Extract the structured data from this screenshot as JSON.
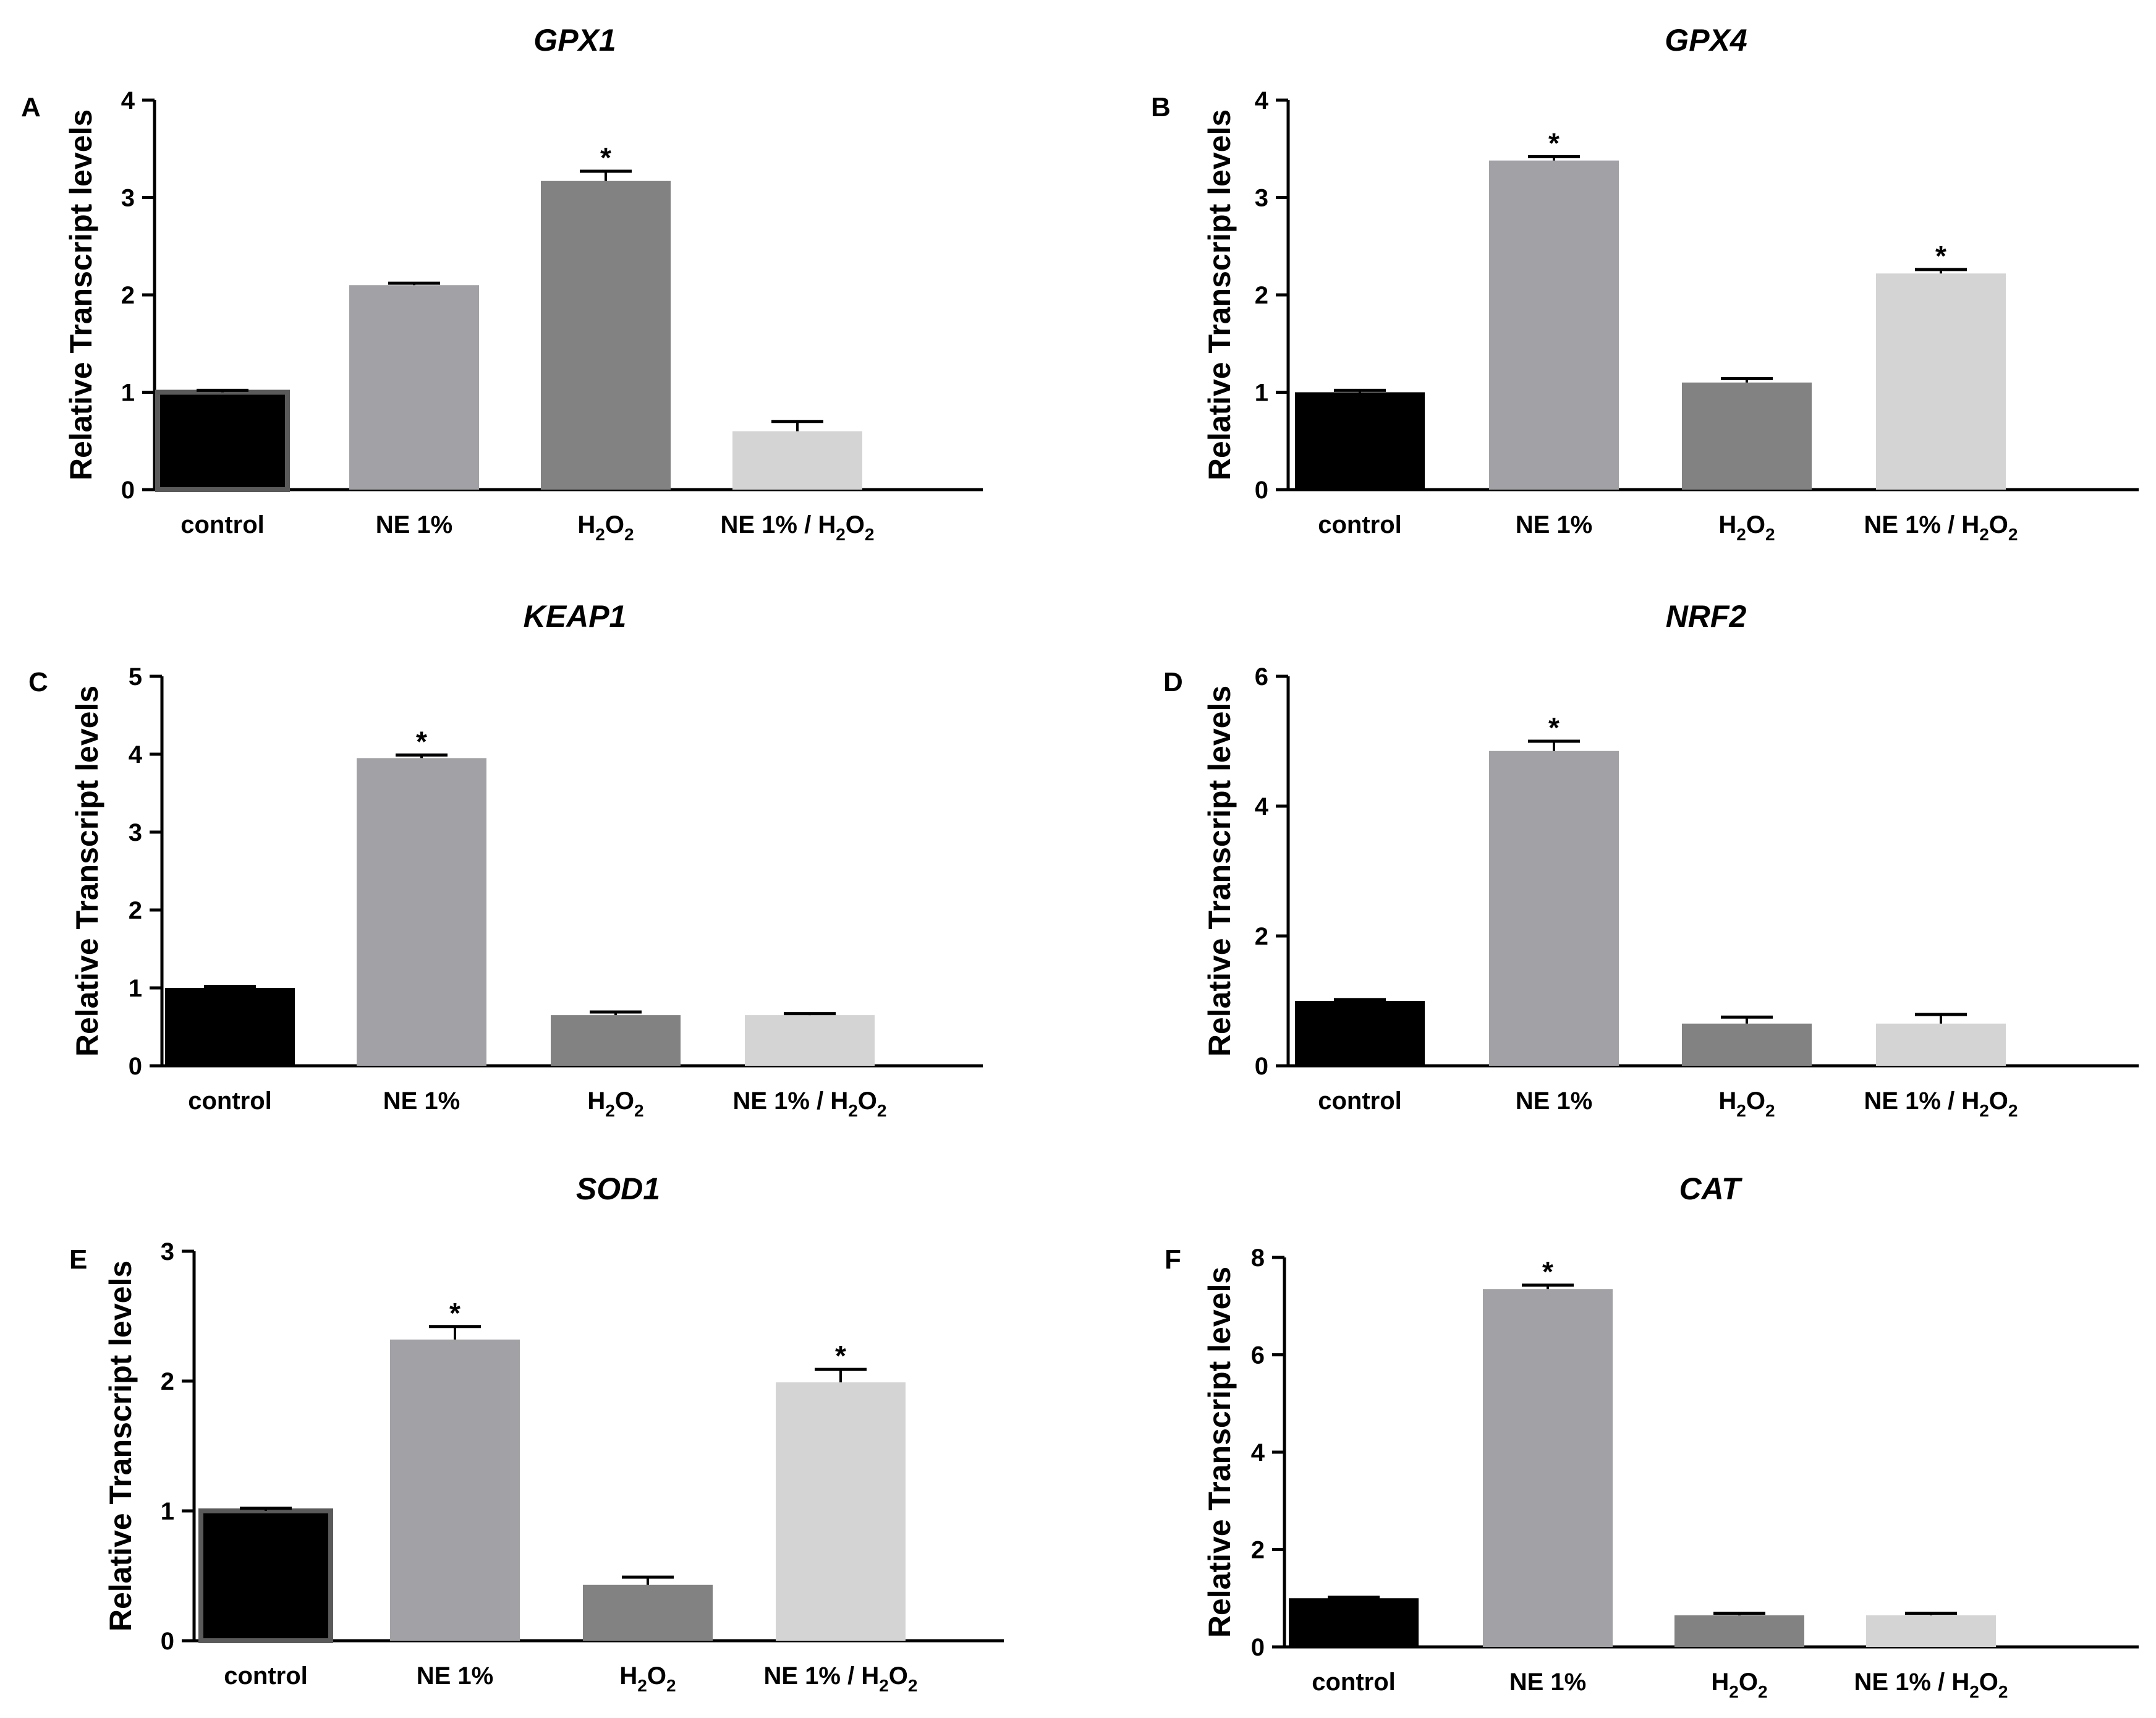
{
  "figure": {
    "ylabel": "Relative Transcript levels",
    "categories": [
      "control",
      "NE 1%",
      "H2O2",
      "NE 1%  / H2O2"
    ],
    "colors": [
      "#000000",
      "#a2a2a6",
      "#828282",
      "#d4d4d4"
    ],
    "outline_color": "#5a5a5a"
  },
  "chart_data": [
    {
      "type": "bar",
      "letter": "A",
      "title": "GPX1",
      "ylabel": "Relative Transcript levels",
      "categories": [
        "control",
        "NE 1%",
        "H2O2",
        "NE 1%  / H2O2"
      ],
      "values": [
        1.0,
        2.1,
        3.17,
        0.6
      ],
      "errors": [
        0.02,
        0.02,
        0.1,
        0.1
      ],
      "significant": [
        false,
        false,
        true,
        false
      ],
      "outlined": [
        true,
        false,
        false,
        false
      ],
      "ylim": [
        0,
        4
      ],
      "yticks": [
        0,
        1,
        2,
        3,
        4
      ]
    },
    {
      "type": "bar",
      "letter": "B",
      "title": "GPX4",
      "ylabel": "Relative Transcript levels",
      "categories": [
        "control",
        "NE 1%",
        "H2O2",
        "NE 1%  / H2O2"
      ],
      "values": [
        1.0,
        3.38,
        1.1,
        2.22
      ],
      "errors": [
        0.02,
        0.04,
        0.04,
        0.04
      ],
      "significant": [
        false,
        true,
        false,
        true
      ],
      "outlined": [
        false,
        false,
        false,
        false
      ],
      "ylim": [
        0,
        4
      ],
      "yticks": [
        0,
        1,
        2,
        3,
        4
      ]
    },
    {
      "type": "bar",
      "letter": "C",
      "title": "KEAP1",
      "ylabel": "Relative Transcript levels",
      "categories": [
        "control",
        "NE 1%",
        "H2O2",
        "NE 1%  / H2O2"
      ],
      "values": [
        1.0,
        3.95,
        0.65,
        0.65
      ],
      "errors": [
        0.02,
        0.04,
        0.04,
        0.02
      ],
      "significant": [
        false,
        true,
        false,
        false
      ],
      "outlined": [
        false,
        false,
        false,
        false
      ],
      "ylim": [
        0,
        5
      ],
      "yticks": [
        0,
        1,
        2,
        3,
        4,
        5
      ]
    },
    {
      "type": "bar",
      "letter": "D",
      "title": "NRF2",
      "ylabel": "Relative Transcript levels",
      "categories": [
        "control",
        "NE 1%",
        "H2O2",
        "NE 1%  / H2O2"
      ],
      "values": [
        1.0,
        4.85,
        0.65,
        0.65
      ],
      "errors": [
        0.02,
        0.15,
        0.1,
        0.14
      ],
      "significant": [
        false,
        true,
        false,
        false
      ],
      "outlined": [
        false,
        false,
        false,
        false
      ],
      "ylim": [
        0,
        6
      ],
      "yticks": [
        0,
        2,
        4,
        6
      ]
    },
    {
      "type": "bar",
      "letter": "E",
      "title": "SOD1",
      "ylabel": "Relative Transcript levels",
      "categories": [
        "control",
        "NE 1%",
        "H2O2",
        "NE 1%  / H2O2"
      ],
      "values": [
        1.0,
        2.32,
        0.43,
        1.99
      ],
      "errors": [
        0.02,
        0.1,
        0.06,
        0.1
      ],
      "significant": [
        false,
        true,
        false,
        true
      ],
      "outlined": [
        true,
        false,
        false,
        false
      ],
      "ylim": [
        0,
        3
      ],
      "yticks": [
        0,
        1,
        2,
        3
      ]
    },
    {
      "type": "bar",
      "letter": "F",
      "title": "CAT",
      "ylabel": "Relative Transcript levels",
      "categories": [
        "control",
        "NE 1%",
        "H2O2",
        "NE 1%  / H2O2"
      ],
      "values": [
        1.0,
        7.35,
        0.65,
        0.65
      ],
      "errors": [
        0.02,
        0.08,
        0.04,
        0.04
      ],
      "significant": [
        false,
        true,
        false,
        false
      ],
      "outlined": [
        false,
        false,
        false,
        false
      ],
      "ylim": [
        0,
        8
      ],
      "yticks": [
        0,
        2,
        4,
        6,
        8
      ]
    }
  ]
}
